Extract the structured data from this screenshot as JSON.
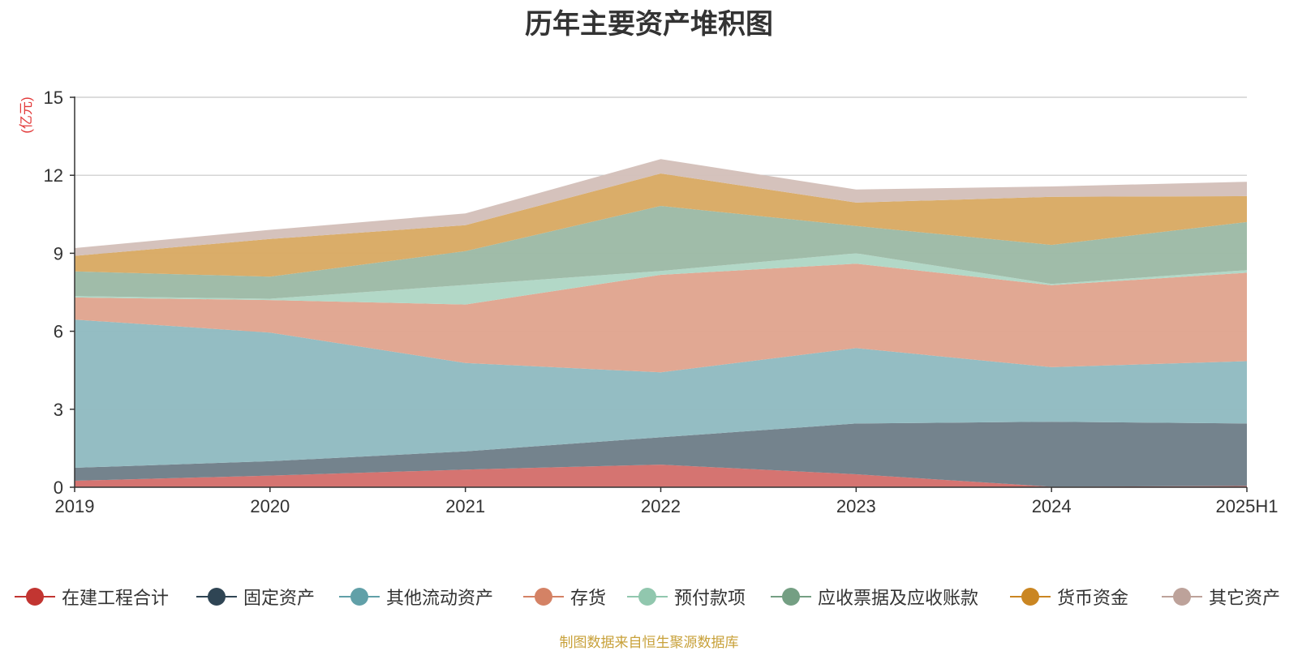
{
  "title": "历年主要资产堆积图",
  "unit_label": "(亿元)",
  "source_text": "制图数据来自恒生聚源数据库",
  "colors": {
    "unit": "#e23a3a",
    "axis": "#333333",
    "grid": "#c8c8c8",
    "source": "#c8a13a"
  },
  "chart_data": {
    "type": "area",
    "stacked": true,
    "categories": [
      "2019",
      "2020",
      "2021",
      "2022",
      "2023",
      "2024",
      "2025H1"
    ],
    "ylim": [
      0,
      15
    ],
    "yticks": [
      0,
      3,
      6,
      9,
      12,
      15
    ],
    "ylabel": "(亿元)",
    "grid": true,
    "legend_position": "bottom",
    "series": [
      {
        "name": "在建工程合计",
        "color": "#c23531",
        "fill": "#d4706c",
        "values": [
          0.25,
          0.45,
          0.68,
          0.87,
          0.5,
          0.02,
          0.05
        ]
      },
      {
        "name": "固定资产",
        "color": "#2f4554",
        "fill": "#6f7f89",
        "values": [
          0.5,
          0.55,
          0.7,
          1.05,
          1.95,
          2.5,
          2.4
        ]
      },
      {
        "name": "其他流动资产",
        "color": "#61a0a8",
        "fill": "#91bbc1",
        "values": [
          5.7,
          4.95,
          3.4,
          2.5,
          2.9,
          2.1,
          2.4
        ]
      },
      {
        "name": "存货",
        "color": "#d48265",
        "fill": "#e0a590",
        "values": [
          0.85,
          1.25,
          2.25,
          3.75,
          3.25,
          3.15,
          3.4
        ]
      },
      {
        "name": "预付款项",
        "color": "#91c7ae",
        "fill": "#b0d7c5",
        "values": [
          0.05,
          0.05,
          0.75,
          0.15,
          0.4,
          0.05,
          0.1
        ]
      },
      {
        "name": "应收票据及应收账款",
        "color": "#749f83",
        "fill": "#9dbaa6",
        "values": [
          0.95,
          0.85,
          1.3,
          2.5,
          1.05,
          1.5,
          1.85
        ]
      },
      {
        "name": "货币资金",
        "color": "#ca8622",
        "fill": "#d9aa64",
        "values": [
          0.6,
          1.45,
          1.0,
          1.25,
          0.9,
          1.85,
          1.0
        ]
      },
      {
        "name": "其它资产",
        "color": "#bda29a",
        "fill": "#d4c0ba",
        "values": [
          0.3,
          0.35,
          0.45,
          0.55,
          0.5,
          0.4,
          0.55
        ]
      }
    ]
  }
}
